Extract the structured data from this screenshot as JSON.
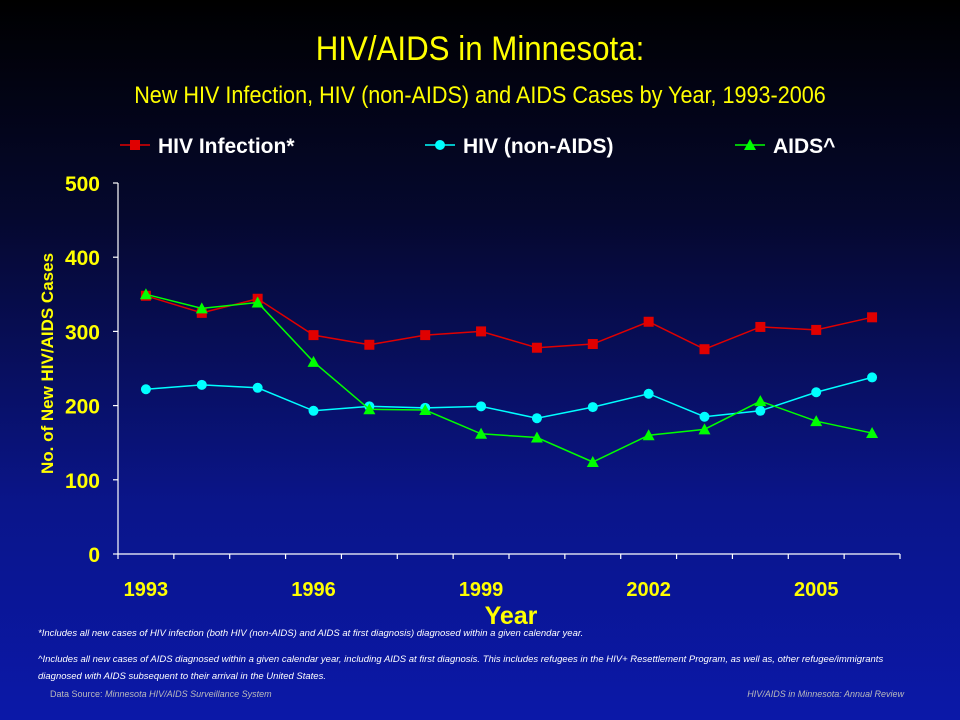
{
  "header": {
    "title": "HIV/AIDS in Minnesota:",
    "subtitle": "New HIV Infection, HIV (non-AIDS) and AIDS Cases by Year, 1993-2006"
  },
  "chart_data": {
    "type": "line",
    "x": [
      1993,
      1994,
      1995,
      1996,
      1997,
      1998,
      1999,
      2000,
      2001,
      2002,
      2003,
      2004,
      2005,
      2006
    ],
    "x_tick_labels": [
      "1993",
      "1996",
      "1999",
      "2002",
      "2005"
    ],
    "x_tick_values": [
      1993,
      1996,
      1999,
      2002,
      2005
    ],
    "y_tick_labels": [
      "0",
      "100",
      "200",
      "300",
      "400",
      "500"
    ],
    "xlabel": "Year",
    "ylabel": "No. of New HIV/AIDS Cases",
    "ylim": [
      0,
      500
    ],
    "legend_position": "top",
    "grid": false,
    "series": [
      {
        "name": "HIV Infection*",
        "color": "#e00000",
        "marker": "square",
        "values": [
          348,
          325,
          344,
          295,
          282,
          295,
          300,
          278,
          283,
          313,
          276,
          306,
          302,
          319
        ]
      },
      {
        "name": "HIV (non-AIDS)",
        "color": "#00ffff",
        "marker": "circle",
        "values": [
          222,
          228,
          224,
          193,
          199,
          197,
          199,
          183,
          198,
          216,
          185,
          193,
          218,
          238
        ]
      },
      {
        "name": "AIDS^",
        "color": "#00ff00",
        "marker": "triangle",
        "values": [
          350,
          331,
          339,
          259,
          195,
          194,
          162,
          157,
          124,
          160,
          168,
          206,
          179,
          163
        ]
      }
    ]
  },
  "footnotes": {
    "note1": "*Includes all new cases of HIV infection (both HIV (non-AIDS) and AIDS at first diagnosis) diagnosed within a given calendar year.",
    "note2": "^Includes all new cases of AIDS diagnosed within a given calendar year, including AIDS at first diagnosis. This includes refugees in the HIV+ Resettlement Program, as well as, other refugee/immigrants diagnosed with AIDS subsequent to their arrival in the United States."
  },
  "footer": {
    "source_label": "Data Source:",
    "source_value": "Minnesota HIV/AIDS Surveillance System",
    "review": "HIV/AIDS in Minnesota: Annual Review"
  }
}
